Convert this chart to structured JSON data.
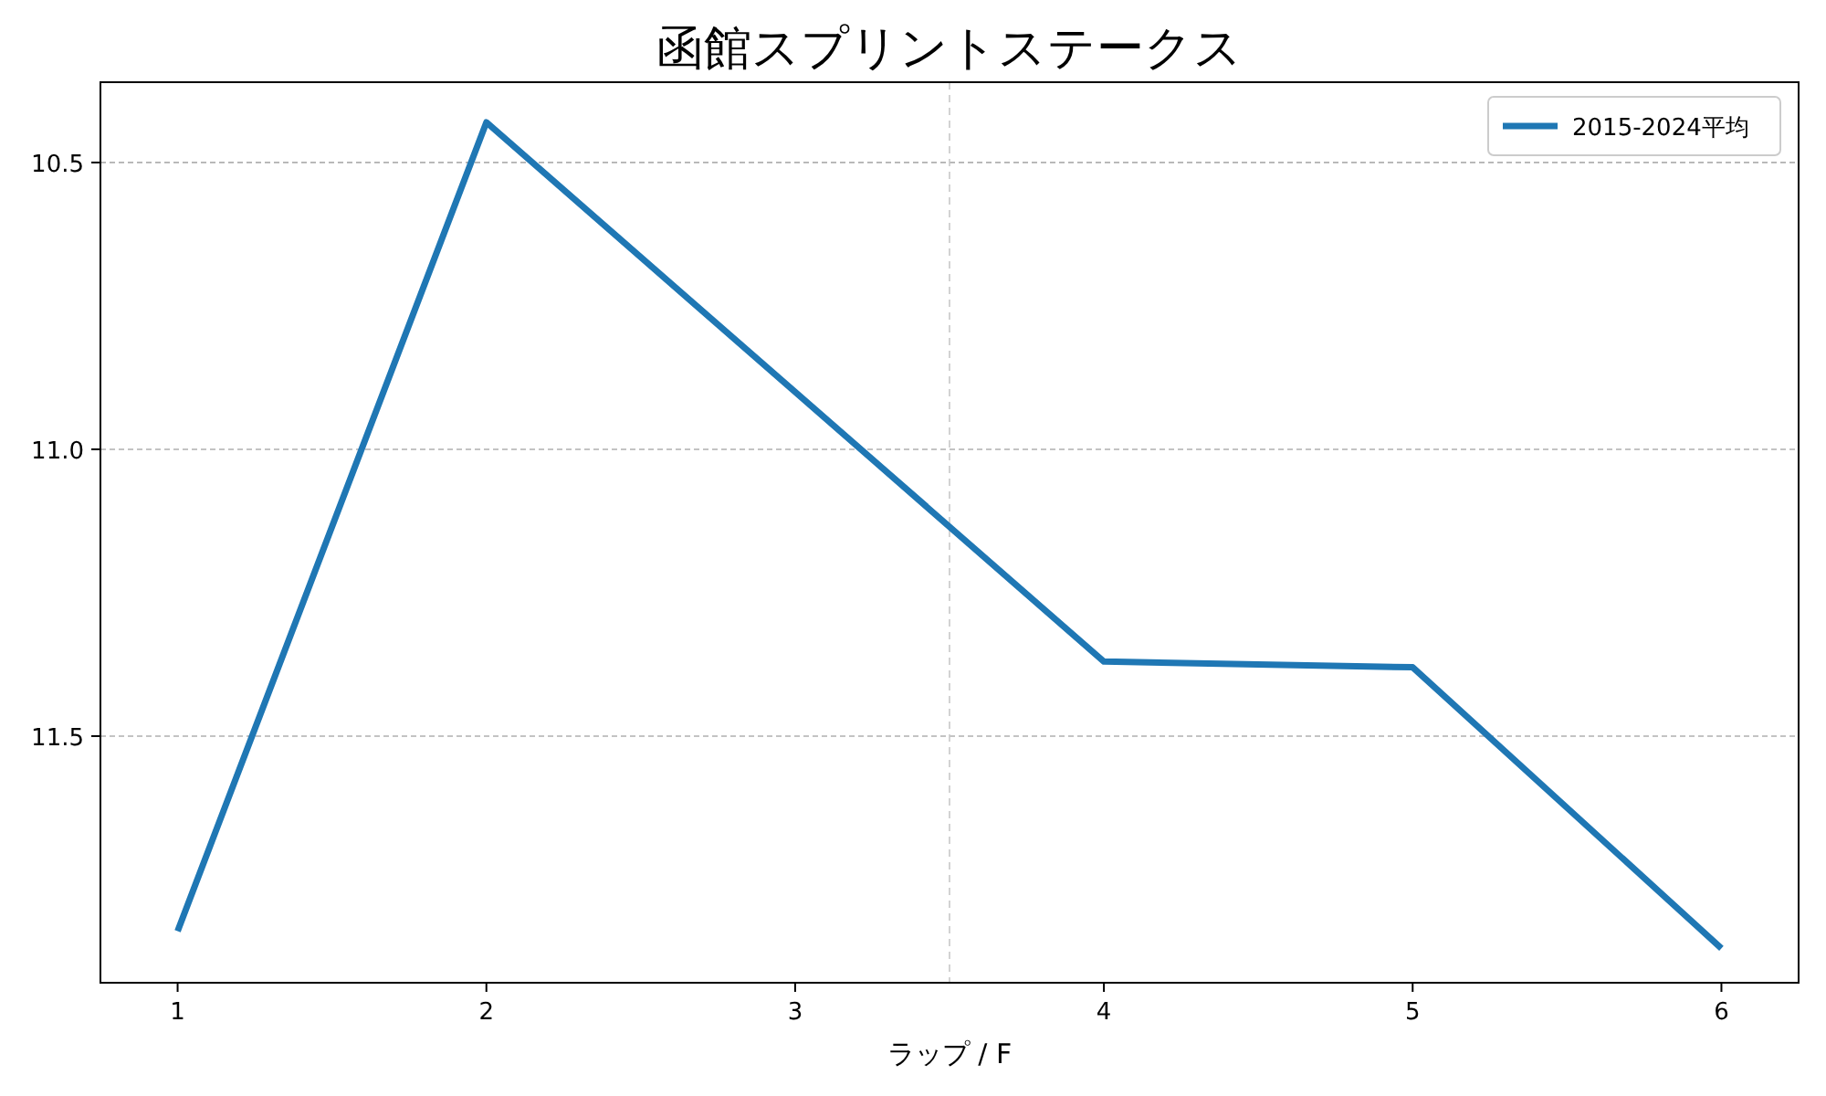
{
  "chart_data": {
    "type": "line",
    "title": "函館スプリントステークス",
    "xlabel": "ラップ / F",
    "x": [
      1,
      2,
      3,
      4,
      5,
      6
    ],
    "series": [
      {
        "name": "2015-2024平均",
        "color": "#1f77b4",
        "values": [
          11.84,
          10.43,
          10.9,
          11.37,
          11.38,
          11.87
        ]
      }
    ],
    "xlim": [
      0.75,
      6.25
    ],
    "xticks": [
      1,
      2,
      3,
      4,
      5,
      6
    ],
    "ylim": [
      11.93,
      10.36
    ],
    "yticks": [
      {
        "value": 10.5,
        "label": "10.5"
      },
      {
        "value": 11.0,
        "label": "11.0"
      },
      {
        "value": 11.5,
        "label": "11.5"
      }
    ],
    "grid": "y",
    "legend": "top right",
    "marker": "none",
    "line_style": "solid",
    "ref_lines": [
      {
        "axis": "x",
        "value": 3.5,
        "label": null,
        "line_style": "dashed"
      }
    ]
  }
}
